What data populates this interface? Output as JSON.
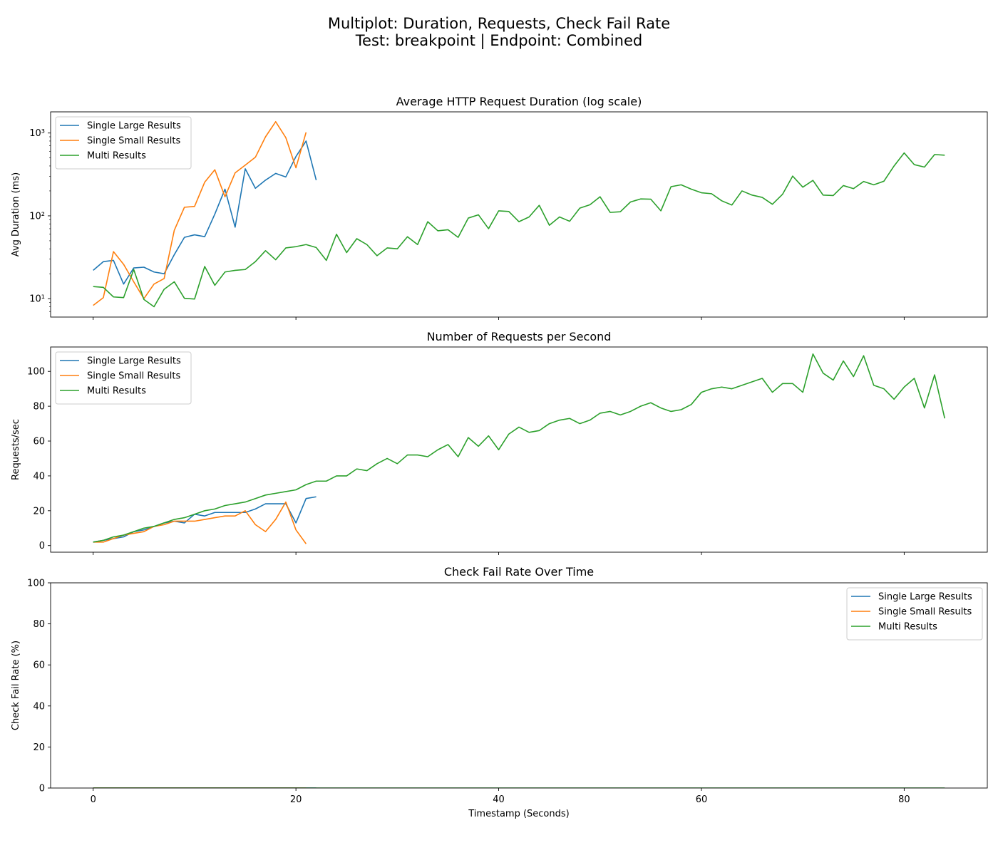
{
  "figure": {
    "title_line1": "Multiplot: Duration, Requests, Check Fail Rate",
    "title_line2": "Test: breakpoint | Endpoint: Combined",
    "xlabel": "Timestamp (Seconds)"
  },
  "colors": {
    "single_large": "#1f77b4",
    "single_small": "#ff7f0e",
    "multi": "#2ca02c"
  },
  "chart_data": [
    {
      "type": "line",
      "title": "Average HTTP Request Duration (log scale)",
      "xlabel": "",
      "ylabel": "Avg Duration (ms)",
      "yscale": "log",
      "xlim": [
        -4.2,
        88.2
      ],
      "ylim": [
        6,
        1800
      ],
      "xticks": [
        0,
        20,
        40,
        60,
        80
      ],
      "yticks": [
        10,
        100,
        1000
      ],
      "ytick_labels": [
        "10¹",
        "10²",
        "10³"
      ],
      "legend": "top-left",
      "grid": false,
      "series": [
        {
          "name": "Single Large Results",
          "color_key": "single_large",
          "x_start": 0,
          "values": [
            22,
            28,
            29,
            15,
            23.5,
            24,
            21,
            20,
            34,
            55,
            59,
            56,
            105,
            210,
            73,
            370,
            215,
            270,
            325,
            295,
            520,
            800,
            270
          ]
        },
        {
          "name": "Single Small Results",
          "color_key": "single_small",
          "x_start": 0,
          "values": [
            8.3,
            10.3,
            37,
            26,
            16,
            10,
            15,
            17.5,
            67,
            127,
            130,
            255,
            360,
            170,
            330,
            410,
            510,
            900,
            1370,
            880,
            380,
            1020
          ]
        },
        {
          "name": "Multi Results",
          "color_key": "multi",
          "x_start": 0,
          "values": [
            14,
            13.7,
            10.5,
            10.3,
            22.5,
            9.8,
            8,
            13,
            16,
            10.1,
            9.9,
            24.5,
            14.5,
            21,
            22,
            22.5,
            28,
            38,
            29.5,
            41,
            42.5,
            45,
            41.5,
            29,
            60,
            36,
            53,
            45,
            33,
            41,
            40,
            56,
            45,
            85,
            66,
            68,
            55,
            94,
            103,
            70,
            115,
            113,
            85,
            97,
            134,
            77,
            97,
            86,
            124,
            136,
            170,
            110,
            112,
            147,
            160,
            159,
            115,
            225,
            237,
            210,
            190,
            185,
            152,
            135,
            200,
            178,
            167,
            138,
            182,
            302,
            222,
            268,
            178,
            176,
            232,
            213,
            260,
            237,
            262,
            400,
            575,
            415,
            388,
            550,
            540
          ]
        }
      ]
    },
    {
      "type": "line",
      "title": "Number of Requests per Second",
      "xlabel": "",
      "ylabel": "Requests/sec",
      "xlim": [
        -4.2,
        88.2
      ],
      "ylim": [
        -3.8,
        114
      ],
      "xticks": [
        0,
        20,
        40,
        60,
        80
      ],
      "yticks": [
        0,
        20,
        40,
        60,
        80,
        100
      ],
      "legend": "top-left",
      "grid": false,
      "series": [
        {
          "name": "Single Large Results",
          "color_key": "single_large",
          "x_start": 0,
          "values": [
            2,
            3,
            4,
            5,
            8,
            9,
            11,
            13,
            14,
            13,
            18,
            17,
            19,
            19,
            19,
            19,
            21,
            24,
            24,
            24,
            13,
            27,
            28
          ]
        },
        {
          "name": "Single Small Results",
          "color_key": "single_small",
          "x_start": 0,
          "values": [
            2,
            2,
            4,
            6,
            7,
            8,
            11,
            12,
            14,
            14,
            14,
            15,
            16,
            17,
            17,
            20,
            12,
            8,
            15,
            25,
            9,
            1
          ]
        },
        {
          "name": "Multi Results",
          "color_key": "multi",
          "x_start": 0,
          "values": [
            2,
            3,
            5,
            6,
            8,
            10,
            11,
            13,
            15,
            16,
            18,
            20,
            21,
            23,
            24,
            25,
            27,
            29,
            30,
            31,
            32,
            35,
            37,
            37,
            40,
            40,
            44,
            43,
            47,
            50,
            47,
            52,
            52,
            51,
            55,
            58,
            51,
            62,
            57,
            63,
            55,
            64,
            68,
            65,
            66,
            70,
            72,
            73,
            70,
            72,
            76,
            77,
            75,
            77,
            80,
            82,
            79,
            77,
            78,
            81,
            88,
            90,
            91,
            90,
            92,
            94,
            96,
            88,
            93,
            93,
            88,
            110,
            99,
            95,
            106,
            97,
            109,
            92,
            90,
            84,
            91,
            96,
            79,
            98,
            73
          ]
        }
      ]
    },
    {
      "type": "line",
      "title": "Check Fail Rate Over Time",
      "xlabel": "Timestamp (Seconds)",
      "ylabel": "Check Fail Rate (%)",
      "xlim": [
        -4.2,
        88.2
      ],
      "ylim": [
        0,
        100
      ],
      "xticks": [
        0,
        20,
        40,
        60,
        80
      ],
      "yticks": [
        0,
        20,
        40,
        60,
        80,
        100
      ],
      "legend": "top-right",
      "grid": false,
      "series": [
        {
          "name": "Single Large Results",
          "color_key": "single_large",
          "x_start": 0,
          "constant": 0,
          "count": 23
        },
        {
          "name": "Single Small Results",
          "color_key": "single_small",
          "x_start": 0,
          "constant": 0,
          "count": 22
        },
        {
          "name": "Multi Results",
          "color_key": "multi",
          "x_start": 0,
          "constant": 0,
          "count": 85
        }
      ]
    }
  ]
}
